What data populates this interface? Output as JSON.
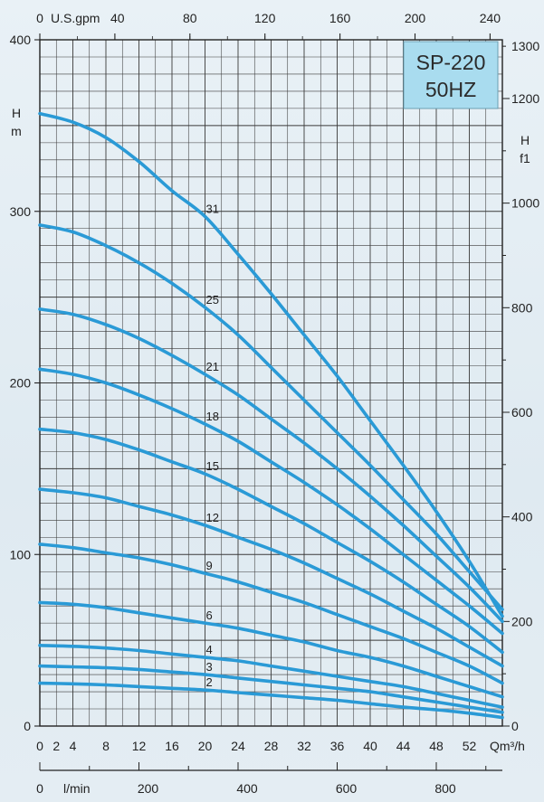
{
  "chart_data": {
    "type": "line",
    "title_lines": [
      "SP-220",
      "50HZ"
    ],
    "left_axis_label_lines": [
      "H",
      "m"
    ],
    "right_axis_label_lines": [
      "H",
      "f1"
    ],
    "x_axis_unit_label": "Qm³/h",
    "top_axis_unit_label": "U.S.gpm",
    "bottom_axis_unit_label": "l/min",
    "xlim": [
      0,
      56
    ],
    "ylim": [
      0,
      400
    ],
    "grid": true,
    "x_ticks": [
      {
        "value": 0,
        "label": "0"
      },
      {
        "value": 2,
        "label": "2"
      },
      {
        "value": 4,
        "label": "4"
      },
      {
        "value": 8,
        "label": "8"
      },
      {
        "value": 12,
        "label": "12"
      },
      {
        "value": 16,
        "label": "16"
      },
      {
        "value": 20,
        "label": "20"
      },
      {
        "value": 24,
        "label": "24"
      },
      {
        "value": 28,
        "label": "28"
      },
      {
        "value": 32,
        "label": "32"
      },
      {
        "value": 36,
        "label": "36"
      },
      {
        "value": 40,
        "label": "40"
      },
      {
        "value": 44,
        "label": "44"
      },
      {
        "value": 48,
        "label": "48"
      },
      {
        "value": 52,
        "label": "52"
      }
    ],
    "top_ticks": [
      {
        "value": 0,
        "label": "0"
      },
      {
        "value": 40,
        "label": "40"
      },
      {
        "value": 80,
        "label": "80"
      },
      {
        "value": 120,
        "label": "120"
      },
      {
        "value": 160,
        "label": "160"
      },
      {
        "value": 200,
        "label": "200"
      },
      {
        "value": 240,
        "label": "240"
      }
    ],
    "bottom_ticks": [
      {
        "value": 0,
        "label": "0"
      },
      {
        "value": 200,
        "label": "200"
      },
      {
        "value": 400,
        "label": "400"
      },
      {
        "value": 600,
        "label": "600"
      },
      {
        "value": 800,
        "label": "800"
      }
    ],
    "y_ticks": [
      {
        "value": 0,
        "label": "0"
      },
      {
        "value": 100,
        "label": "100"
      },
      {
        "value": 200,
        "label": "200"
      },
      {
        "value": 300,
        "label": "300"
      },
      {
        "value": 400,
        "label": "400"
      }
    ],
    "right_ticks": [
      {
        "value": 0,
        "label": "0"
      },
      {
        "value": 200,
        "label": "200"
      },
      {
        "value": 400,
        "label": "400"
      },
      {
        "value": 600,
        "label": "600"
      },
      {
        "value": 800,
        "label": "800"
      },
      {
        "value": 1000,
        "label": "1000"
      },
      {
        "value": 1200,
        "label": "1200"
      },
      {
        "value": 1300,
        "label": "1300"
      }
    ],
    "series": [
      {
        "name": "31",
        "label_x": 20,
        "points": [
          [
            0,
            357
          ],
          [
            4,
            352
          ],
          [
            8,
            343
          ],
          [
            12,
            329
          ],
          [
            16,
            312
          ],
          [
            20,
            297
          ],
          [
            24,
            275
          ],
          [
            28,
            252
          ],
          [
            32,
            228
          ],
          [
            36,
            204
          ],
          [
            40,
            178
          ],
          [
            44,
            152
          ],
          [
            48,
            125
          ],
          [
            52,
            96
          ],
          [
            56,
            64
          ]
        ]
      },
      {
        "name": "25",
        "label_x": 20,
        "points": [
          [
            0,
            292
          ],
          [
            4,
            288
          ],
          [
            8,
            280
          ],
          [
            12,
            270
          ],
          [
            16,
            258
          ],
          [
            20,
            244
          ],
          [
            24,
            228
          ],
          [
            28,
            209
          ],
          [
            32,
            190
          ],
          [
            36,
            171
          ],
          [
            40,
            152
          ],
          [
            44,
            132
          ],
          [
            48,
            112
          ],
          [
            52,
            90
          ],
          [
            56,
            68
          ]
        ]
      },
      {
        "name": "21",
        "label_x": 20,
        "points": [
          [
            0,
            243
          ],
          [
            4,
            240
          ],
          [
            8,
            234
          ],
          [
            12,
            226
          ],
          [
            16,
            216
          ],
          [
            20,
            205
          ],
          [
            24,
            193
          ],
          [
            28,
            179
          ],
          [
            32,
            165
          ],
          [
            36,
            150
          ],
          [
            40,
            134
          ],
          [
            44,
            117
          ],
          [
            48,
            99
          ],
          [
            52,
            81
          ],
          [
            56,
            61
          ]
        ]
      },
      {
        "name": "18",
        "label_x": 20,
        "points": [
          [
            0,
            208
          ],
          [
            4,
            205
          ],
          [
            8,
            200
          ],
          [
            12,
            193
          ],
          [
            16,
            185
          ],
          [
            20,
            176
          ],
          [
            24,
            166
          ],
          [
            28,
            154
          ],
          [
            32,
            142
          ],
          [
            36,
            129
          ],
          [
            40,
            115
          ],
          [
            44,
            100
          ],
          [
            48,
            85
          ],
          [
            52,
            70
          ],
          [
            56,
            54
          ]
        ]
      },
      {
        "name": "15",
        "label_x": 20,
        "points": [
          [
            0,
            173
          ],
          [
            4,
            171
          ],
          [
            8,
            167
          ],
          [
            12,
            161
          ],
          [
            16,
            154
          ],
          [
            20,
            147
          ],
          [
            24,
            138
          ],
          [
            28,
            128
          ],
          [
            32,
            118
          ],
          [
            36,
            107
          ],
          [
            40,
            96
          ],
          [
            44,
            84
          ],
          [
            48,
            71
          ],
          [
            52,
            58
          ],
          [
            56,
            43
          ]
        ]
      },
      {
        "name": "12",
        "label_x": 20,
        "points": [
          [
            0,
            138
          ],
          [
            4,
            136
          ],
          [
            8,
            133
          ],
          [
            12,
            128
          ],
          [
            16,
            123
          ],
          [
            20,
            117
          ],
          [
            24,
            110
          ],
          [
            28,
            103
          ],
          [
            32,
            95
          ],
          [
            36,
            86
          ],
          [
            40,
            77
          ],
          [
            44,
            67
          ],
          [
            48,
            57
          ],
          [
            52,
            46
          ],
          [
            56,
            35
          ]
        ]
      },
      {
        "name": "9",
        "label_x": 20,
        "points": [
          [
            0,
            106
          ],
          [
            4,
            104
          ],
          [
            8,
            101
          ],
          [
            12,
            98
          ],
          [
            16,
            94
          ],
          [
            20,
            89
          ],
          [
            24,
            84
          ],
          [
            28,
            78
          ],
          [
            32,
            72
          ],
          [
            36,
            65
          ],
          [
            40,
            58
          ],
          [
            44,
            51
          ],
          [
            48,
            43
          ],
          [
            52,
            35
          ],
          [
            56,
            25
          ]
        ]
      },
      {
        "name": "6",
        "label_x": 20,
        "points": [
          [
            0,
            72
          ],
          [
            4,
            71
          ],
          [
            8,
            69
          ],
          [
            12,
            66
          ],
          [
            16,
            63
          ],
          [
            20,
            60
          ],
          [
            24,
            57
          ],
          [
            28,
            53
          ],
          [
            32,
            49
          ],
          [
            36,
            44
          ],
          [
            40,
            40
          ],
          [
            44,
            35
          ],
          [
            48,
            29
          ],
          [
            52,
            23
          ],
          [
            56,
            17
          ]
        ]
      },
      {
        "name": "4",
        "label_x": 20,
        "points": [
          [
            0,
            47
          ],
          [
            4,
            46.5
          ],
          [
            8,
            45.5
          ],
          [
            12,
            44
          ],
          [
            16,
            42
          ],
          [
            20,
            40
          ],
          [
            24,
            38
          ],
          [
            28,
            35
          ],
          [
            32,
            32
          ],
          [
            36,
            29
          ],
          [
            40,
            26
          ],
          [
            44,
            23
          ],
          [
            48,
            19
          ],
          [
            52,
            15
          ],
          [
            56,
            11
          ]
        ]
      },
      {
        "name": "3",
        "label_x": 20,
        "points": [
          [
            0,
            35
          ],
          [
            4,
            34.5
          ],
          [
            8,
            34
          ],
          [
            12,
            33
          ],
          [
            16,
            31.5
          ],
          [
            20,
            30
          ],
          [
            24,
            28
          ],
          [
            28,
            26
          ],
          [
            32,
            24
          ],
          [
            36,
            22
          ],
          [
            40,
            20
          ],
          [
            44,
            17
          ],
          [
            48,
            14
          ],
          [
            52,
            11
          ],
          [
            56,
            8
          ]
        ]
      },
      {
        "name": "2",
        "label_x": 20,
        "points": [
          [
            0,
            25
          ],
          [
            4,
            24.6
          ],
          [
            8,
            24
          ],
          [
            12,
            23
          ],
          [
            16,
            22
          ],
          [
            20,
            21
          ],
          [
            24,
            19.5
          ],
          [
            28,
            18
          ],
          [
            32,
            16.5
          ],
          [
            36,
            15
          ],
          [
            40,
            13
          ],
          [
            44,
            11
          ],
          [
            48,
            9.5
          ],
          [
            52,
            7.5
          ],
          [
            56,
            5
          ]
        ]
      }
    ],
    "colors": {
      "curve": "#2a9ad6",
      "grid": "#3a3a3a",
      "title_box": "#a9dcef",
      "title_text": "#2b2b2b"
    }
  }
}
